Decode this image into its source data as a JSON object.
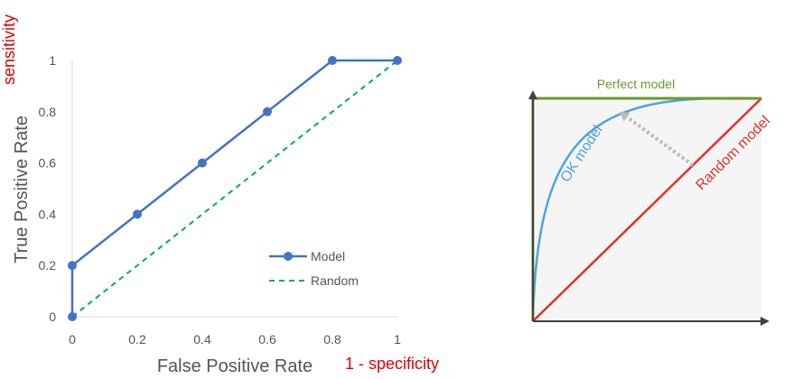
{
  "chart_data": [
    {
      "type": "line",
      "title": "",
      "xlabel": "False Positive Rate",
      "ylabel": "True Positive Rate",
      "x_annotation": "1 - specificity",
      "y_annotation": "sensitivity",
      "xlim": [
        0,
        1
      ],
      "ylim": [
        0,
        1
      ],
      "x_ticks": [
        "0",
        "0.2",
        "0.4",
        "0.6",
        "0.8",
        "1"
      ],
      "y_ticks": [
        "0",
        "0.2",
        "0.4",
        "0.6",
        "0.8",
        "1"
      ],
      "grid": false,
      "legend_position": "lower-right",
      "series": [
        {
          "name": "Model",
          "style": "solid-with-markers",
          "color": "#4472C4",
          "points": [
            [
              0,
              0
            ],
            [
              0,
              0.2
            ],
            [
              0.2,
              0.4
            ],
            [
              0.4,
              0.6
            ],
            [
              0.6,
              0.8
            ],
            [
              0.8,
              1
            ],
            [
              1,
              1
            ]
          ]
        },
        {
          "name": "Random",
          "style": "dashed",
          "color": "#00B050",
          "points": [
            [
              0,
              0
            ],
            [
              1,
              1
            ]
          ]
        }
      ]
    },
    {
      "type": "line",
      "title": "",
      "xlim": [
        0,
        1
      ],
      "ylim": [
        0,
        1
      ],
      "axis_ticks": false,
      "background": "#F5F5F5",
      "arrow": {
        "from": [
          0.7,
          0.7
        ],
        "to": [
          0.38,
          0.94
        ],
        "color": "#BBBBBB",
        "style": "dotted"
      },
      "series": [
        {
          "name": "Perfect model",
          "color": "#6A9A2C",
          "points": [
            [
              0,
              0
            ],
            [
              0,
              1
            ],
            [
              1,
              1
            ]
          ]
        },
        {
          "name": "OK model",
          "color": "#4FA3DF",
          "curve": "concave"
        },
        {
          "name": "Random model",
          "color": "#E0312B",
          "points": [
            [
              0,
              0
            ],
            [
              1,
              1
            ]
          ]
        }
      ]
    }
  ]
}
